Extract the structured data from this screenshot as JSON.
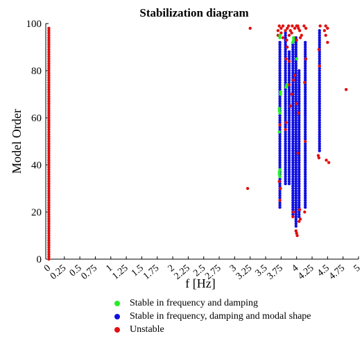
{
  "chart_data": {
    "type": "scatter",
    "title": "Stabilization diagram",
    "xlabel": "f [Hz]",
    "ylabel": "Model Order",
    "xlim": [
      -0.05,
      5.0
    ],
    "ylim": [
      0,
      100
    ],
    "x_ticks": [
      "0",
      "0.25",
      "0.5",
      "0.75",
      "1",
      "1.25",
      "1.5",
      "1.75",
      "2",
      "2.25",
      "2.5",
      "2.75",
      "3",
      "3.25",
      "3.5",
      "3.75",
      "4",
      "4.25",
      "4.5",
      "4.75",
      "5"
    ],
    "y_ticks": [
      "0",
      "20",
      "40",
      "60",
      "80",
      "100"
    ],
    "grid": false,
    "legend_position": "bottom",
    "colors": {
      "stable_freq_damping": "#22ee22",
      "stable_freq_damping_shape": "#1010e0",
      "unstable": "#e01010"
    },
    "series": [
      {
        "key": "stable_freq_damping",
        "name": "Stable in frequency and damping",
        "points": [
          [
            3.73,
            95
          ],
          [
            3.73,
            94
          ],
          [
            3.74,
            71
          ],
          [
            3.74,
            70
          ],
          [
            3.72,
            64
          ],
          [
            3.72,
            63
          ],
          [
            3.73,
            62
          ],
          [
            3.72,
            54
          ],
          [
            3.73,
            38
          ],
          [
            3.72,
            37
          ],
          [
            3.72,
            36
          ],
          [
            3.73,
            35
          ],
          [
            3.84,
            74
          ],
          [
            3.83,
            73
          ],
          [
            3.95,
            94
          ],
          [
            3.95,
            93
          ],
          [
            3.94,
            92
          ],
          [
            4.0,
            85
          ]
        ]
      },
      {
        "key": "stable_freq_damping_shape",
        "name": "Stable in frequency, damping and modal shape",
        "columns": [
          {
            "x": 3.73,
            "from": 22,
            "to": 92
          },
          {
            "x": 3.82,
            "from": 32,
            "to": 96
          },
          {
            "x": 3.88,
            "from": 32,
            "to": 88
          },
          {
            "x": 3.94,
            "from": 19,
            "to": 92
          },
          {
            "x": 3.99,
            "from": 14,
            "to": 94
          },
          {
            "x": 4.04,
            "from": 18,
            "to": 80
          },
          {
            "x": 4.14,
            "from": 22,
            "to": 92
          },
          {
            "x": 4.37,
            "from": 46,
            "to": 97
          }
        ]
      },
      {
        "key": "unstable",
        "name": "Unstable",
        "columns": [
          {
            "x": 0.0,
            "from": 0,
            "to": 98
          }
        ],
        "points": [
          [
            3.21,
            30
          ],
          [
            3.25,
            98
          ],
          [
            4.8,
            72
          ],
          [
            4.48,
            42
          ],
          [
            4.52,
            41
          ],
          [
            4.45,
            97
          ],
          [
            4.47,
            95
          ],
          [
            4.5,
            92
          ],
          [
            4.47,
            99
          ],
          [
            4.5,
            98
          ],
          [
            4.38,
            99
          ],
          [
            4.35,
            44
          ],
          [
            4.36,
            43
          ],
          [
            4.12,
            99
          ],
          [
            4.15,
            98
          ],
          [
            4.13,
            20
          ],
          [
            4.02,
            99
          ],
          [
            4.03,
            98
          ],
          [
            4.05,
            97
          ],
          [
            4.0,
            99
          ],
          [
            3.97,
            98
          ],
          [
            3.93,
            99
          ],
          [
            3.9,
            97
          ],
          [
            3.87,
            99
          ],
          [
            3.85,
            98
          ],
          [
            3.82,
            97
          ],
          [
            3.78,
            99
          ],
          [
            3.75,
            98
          ],
          [
            3.72,
            99
          ],
          [
            3.7,
            97
          ],
          [
            3.7,
            95
          ],
          [
            3.75,
            96
          ],
          [
            3.78,
            94
          ],
          [
            3.84,
            93
          ],
          [
            3.88,
            95
          ],
          [
            3.92,
            96
          ],
          [
            3.96,
            94
          ],
          [
            4.0,
            93
          ],
          [
            4.06,
            94
          ],
          [
            4.08,
            95
          ],
          [
            3.73,
            25
          ],
          [
            3.74,
            30
          ],
          [
            3.72,
            33
          ],
          [
            3.73,
            57
          ],
          [
            3.82,
            55
          ],
          [
            3.83,
            58
          ],
          [
            3.9,
            65
          ],
          [
            3.92,
            70
          ],
          [
            3.88,
            74
          ],
          [
            3.95,
            76
          ],
          [
            3.97,
            78
          ],
          [
            3.99,
            12
          ],
          [
            4.0,
            11
          ],
          [
            4.01,
            10
          ],
          [
            4.04,
            16
          ],
          [
            4.06,
            17
          ],
          [
            4.05,
            21
          ],
          [
            4.02,
            45
          ],
          [
            3.94,
            18
          ],
          [
            3.95,
            20
          ],
          [
            4.14,
            50
          ],
          [
            4.13,
            75
          ],
          [
            4.15,
            85
          ],
          [
            3.83,
            85
          ],
          [
            3.85,
            90
          ],
          [
            3.88,
            84
          ],
          [
            4.0,
            66
          ],
          [
            4.03,
            62
          ],
          [
            4.37,
            82
          ],
          [
            4.36,
            89
          ]
        ]
      }
    ]
  }
}
